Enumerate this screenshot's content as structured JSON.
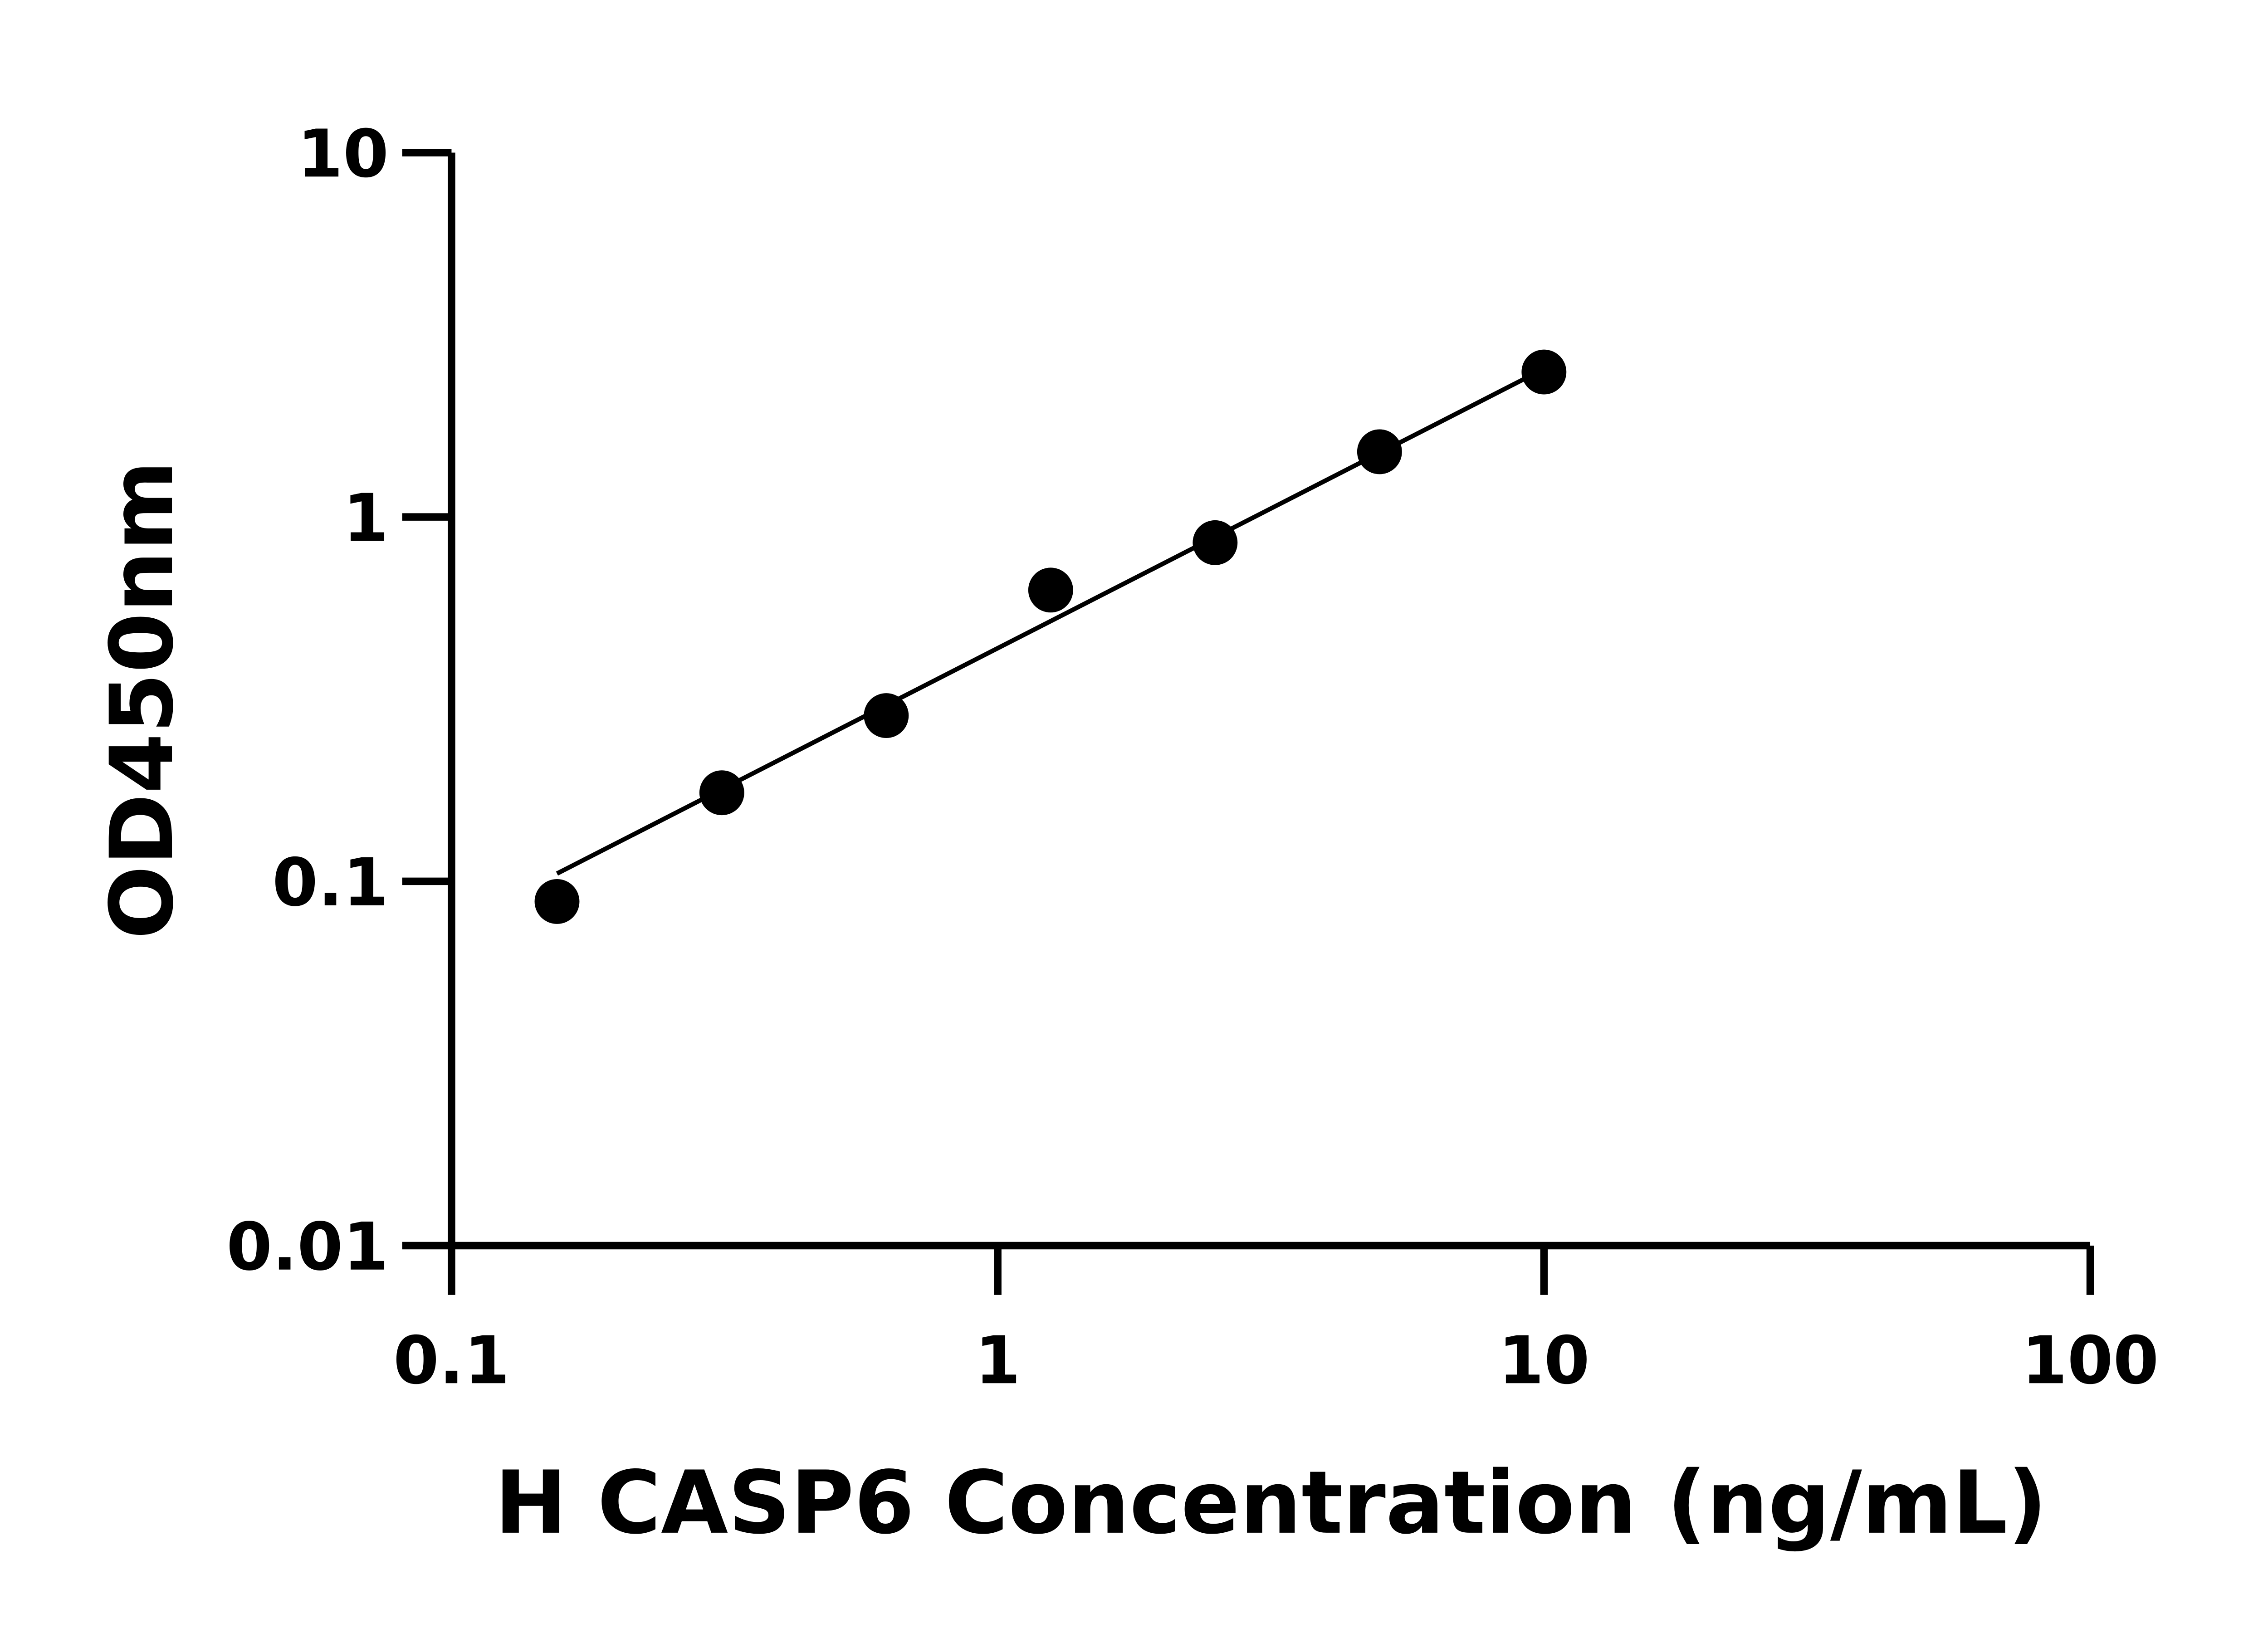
{
  "chart_data": {
    "type": "scatter",
    "title": "",
    "xlabel": "H CASP6 Concentration (ng/mL)",
    "ylabel": "OD450nm",
    "xscale": "log",
    "yscale": "log",
    "xlim": [
      0.1,
      100
    ],
    "ylim": [
      0.01,
      10
    ],
    "xticks": [
      "0.1",
      "1",
      "10",
      "100"
    ],
    "yticks": [
      "0.01",
      "0.1",
      "1",
      "10"
    ],
    "grid": false,
    "legend": "none",
    "color": "#000000",
    "points": {
      "x": [
        0.156,
        0.3125,
        0.625,
        1.25,
        2.5,
        5,
        10
      ],
      "y": [
        0.088,
        0.175,
        0.285,
        0.63,
        0.85,
        1.51,
        2.5
      ]
    },
    "fit_line": {
      "x": [
        0.156,
        10
      ],
      "y": [
        0.105,
        2.55
      ]
    }
  }
}
